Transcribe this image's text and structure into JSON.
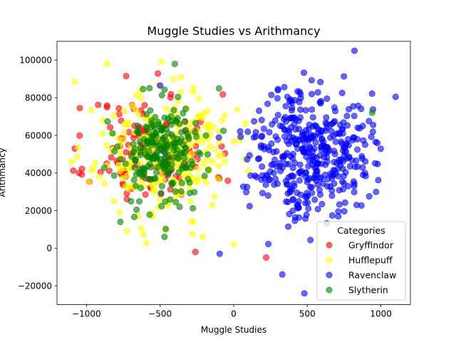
{
  "chart_data": {
    "type": "scatter",
    "title": "Muggle Studies vs Arithmancy",
    "xlabel": "Muggle Studies",
    "ylabel": "Arithmancy",
    "xlim": [
      -1200,
      1200
    ],
    "ylim": [
      -30000,
      110000
    ],
    "xticks": [
      -1000,
      -500,
      0,
      500,
      1000
    ],
    "yticks": [
      -20000,
      0,
      20000,
      40000,
      60000,
      80000,
      100000
    ],
    "grid": false,
    "legend": {
      "title": "Categories",
      "placement": "lower-right"
    },
    "series": [
      {
        "name": "Gryffindor",
        "color": "#ff0000",
        "center": [
          -560,
          52000
        ],
        "spread": [
          210,
          15000
        ],
        "n": 130,
        "seed": 11,
        "outliers": [
          [
            -1050,
            40000
          ],
          [
            -1045,
            74500
          ],
          [
            -260,
            -2000
          ],
          [
            220,
            -5000
          ],
          [
            -730,
            91500
          ]
        ]
      },
      {
        "name": "Hufflepuff",
        "color": "#ffff00",
        "center": [
          -480,
          50000
        ],
        "spread": [
          230,
          16000
        ],
        "n": 270,
        "seed": 23,
        "outliers": [
          [
            -1080,
            88500
          ],
          [
            -860,
            98000
          ],
          [
            0,
            2000
          ],
          [
            -280,
            7500
          ]
        ]
      },
      {
        "name": "Ravenclaw",
        "color": "#0000ff",
        "center": [
          520,
          52000
        ],
        "spread": [
          200,
          17000
        ],
        "n": 420,
        "seed": 37,
        "outliers": [
          [
            820,
            105000
          ],
          [
            1100,
            80500
          ],
          [
            480,
            -24000
          ],
          [
            330,
            -14000
          ],
          [
            -95,
            -3000
          ],
          [
            -500,
            86500
          ],
          [
            -470,
            51000
          ]
        ]
      },
      {
        "name": "Slytherin",
        "color": "#008000",
        "center": [
          -480,
          50000
        ],
        "spread": [
          150,
          14000
        ],
        "n": 220,
        "seed": 53,
        "outliers": [
          [
            -400,
            98000
          ],
          [
            -100,
            85000
          ],
          [
            -470,
            6000
          ],
          [
            940,
            72000
          ],
          [
            -770,
            14000
          ]
        ]
      }
    ]
  }
}
